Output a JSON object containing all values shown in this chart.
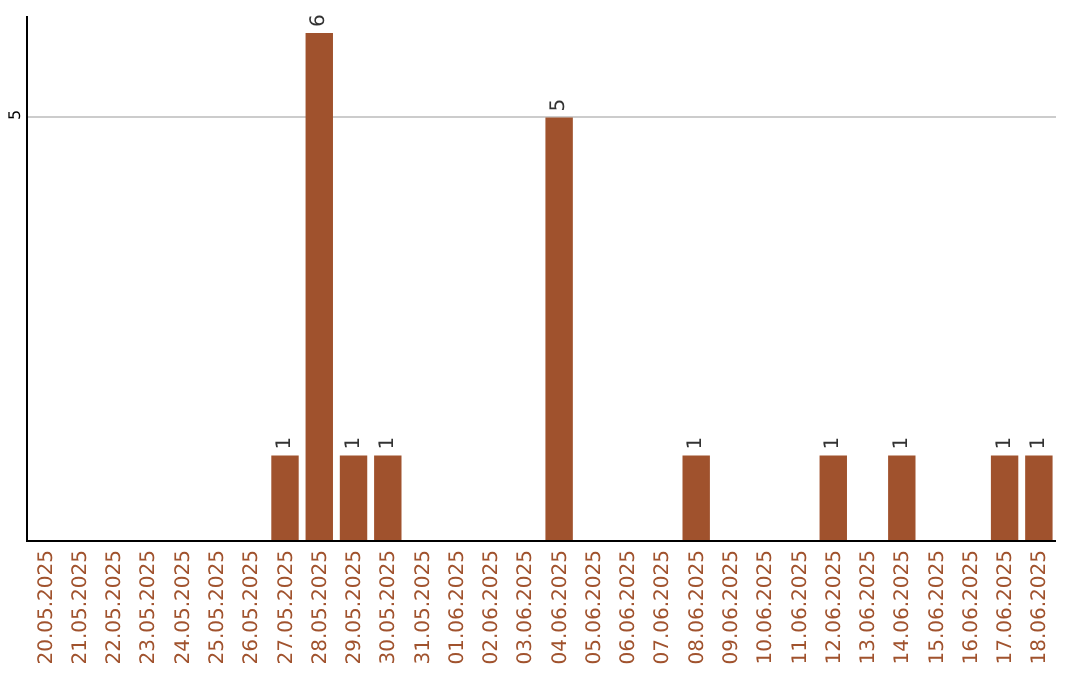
{
  "chart_data": {
    "type": "bar",
    "categories": [
      "20.05.2025",
      "21.05.2025",
      "22.05.2025",
      "23.05.2025",
      "24.05.2025",
      "25.05.2025",
      "26.05.2025",
      "27.05.2025",
      "28.05.2025",
      "29.05.2025",
      "30.05.2025",
      "31.05.2025",
      "01.06.2025",
      "02.06.2025",
      "03.06.2025",
      "04.06.2025",
      "05.06.2025",
      "06.06.2025",
      "07.06.2025",
      "08.06.2025",
      "09.06.2025",
      "10.06.2025",
      "11.06.2025",
      "12.06.2025",
      "13.06.2025",
      "14.06.2025",
      "15.06.2025",
      "16.06.2025",
      "17.06.2025",
      "18.06.2025"
    ],
    "values": [
      0,
      0,
      0,
      0,
      0,
      0,
      0,
      1,
      6,
      1,
      1,
      0,
      0,
      0,
      0,
      5,
      0,
      0,
      0,
      1,
      0,
      0,
      0,
      1,
      0,
      1,
      0,
      0,
      1,
      1
    ],
    "color": "#a0522d",
    "value_labels": [
      null,
      null,
      null,
      null,
      null,
      null,
      null,
      "1",
      "6",
      "1",
      "1",
      null,
      null,
      null,
      null,
      "5",
      null,
      null,
      null,
      "1",
      null,
      null,
      null,
      "1",
      null,
      "1",
      null,
      null,
      "1",
      "1"
    ],
    "ylim": [
      0,
      6.2
    ],
    "yticks": [
      5
    ],
    "grid": "y"
  }
}
